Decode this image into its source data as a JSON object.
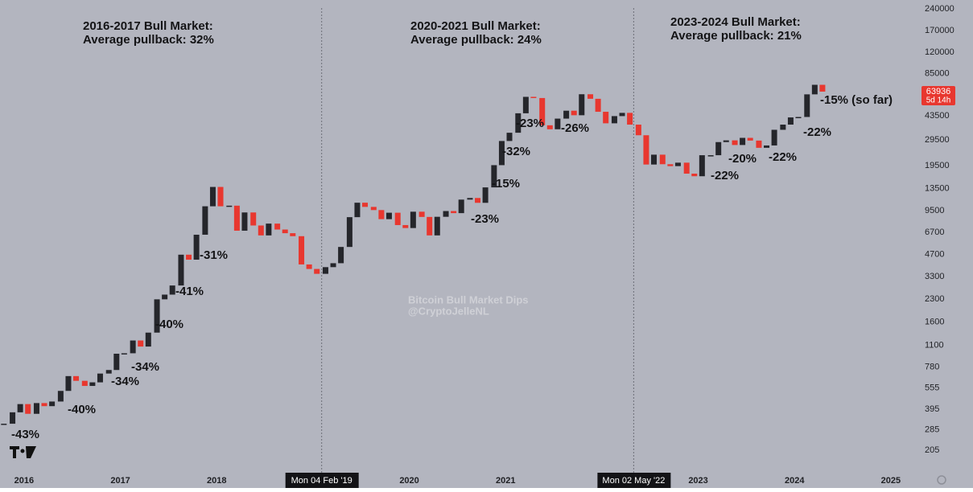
{
  "chart_data": {
    "type": "candlestick",
    "yscale": "log",
    "grid": false,
    "up_color": "#25262b",
    "down_color": "#e8372f",
    "x": [
      2015.79,
      2015.88,
      2015.96,
      2016.04,
      2016.13,
      2016.21,
      2016.29,
      2016.38,
      2016.46,
      2016.54,
      2016.63,
      2016.71,
      2016.79,
      2016.88,
      2016.96,
      2017.04,
      2017.13,
      2017.21,
      2017.29,
      2017.38,
      2017.46,
      2017.54,
      2017.63,
      2017.71,
      2017.79,
      2017.88,
      2017.96,
      2018.04,
      2018.13,
      2018.21,
      2018.29,
      2018.38,
      2018.46,
      2018.54,
      2018.63,
      2018.71,
      2018.79,
      2018.88,
      2018.96,
      2019.04,
      2019.13,
      2019.21,
      2019.29,
      2019.38,
      2019.46,
      2019.54,
      2019.63,
      2019.71,
      2019.79,
      2019.88,
      2019.96,
      2020.04,
      2020.13,
      2020.21,
      2020.29,
      2020.38,
      2020.46,
      2020.54,
      2020.63,
      2020.71,
      2020.79,
      2020.88,
      2020.96,
      2021.04,
      2021.13,
      2021.21,
      2021.29,
      2021.38,
      2021.46,
      2021.54,
      2021.63,
      2021.71,
      2021.79,
      2021.88,
      2021.96,
      2022.04,
      2022.13,
      2022.21,
      2022.29,
      2022.38,
      2022.46,
      2022.54,
      2022.63,
      2022.71,
      2022.79,
      2022.88,
      2022.96,
      2023.04,
      2023.13,
      2023.21,
      2023.29,
      2023.38,
      2023.46,
      2023.54,
      2023.63,
      2023.71,
      2023.79,
      2023.88,
      2023.96,
      2024.04,
      2024.13,
      2024.21,
      2024.29
    ],
    "close": [
      314,
      377,
      430,
      368,
      437,
      416,
      448,
      531,
      673,
      624,
      575,
      609,
      701,
      742,
      963,
      970,
      1190,
      1080,
      1350,
      2300,
      2480,
      2870,
      4700,
      4340,
      6470,
      10200,
      13900,
      10200,
      10300,
      6900,
      9240,
      7500,
      6400,
      7730,
      7030,
      6630,
      6320,
      4020,
      3740,
      3460,
      3850,
      4100,
      5320,
      8570,
      10800,
      10100,
      9600,
      8300,
      9200,
      7550,
      7200,
      9350,
      8600,
      6400,
      8620,
      9450,
      9140,
      11350,
      11650,
      10780,
      13800,
      19700,
      29000,
      33100,
      45200,
      58800,
      57700,
      37300,
      35000,
      41500,
      47100,
      43800,
      61300,
      57000,
      46300,
      38500,
      43200,
      45500,
      37700,
      31800,
      19900,
      23300,
      20000,
      19400,
      20500,
      17200,
      16500,
      23100,
      23100,
      28500,
      29300,
      27200,
      30500,
      29200,
      26000,
      27000,
      34700,
      37700,
      42300,
      42600,
      61200,
      71300,
      63936
    ],
    "countdown": "5d 14h",
    "xlim": [
      2015.75,
      2025.26
    ],
    "xticks": [
      2016,
      2017,
      2018,
      2020,
      2021,
      2023,
      2024,
      2025
    ],
    "ylim": [
      149,
      250000
    ],
    "yticks": [
      205,
      285,
      395,
      555,
      780,
      1100,
      1600,
      2300,
      3300,
      4700,
      6700,
      9500,
      13500,
      19500,
      29500,
      43500,
      85000,
      120000,
      170000,
      240000
    ],
    "crosshairs": [
      {
        "x": 2019.09,
        "label": "Mon 04 Feb '19"
      },
      {
        "x": 2022.33,
        "label": "Mon 02 May '22"
      }
    ],
    "headers": [
      [
        "2016-2017 Bull Market:",
        "Average pullback: 32%"
      ],
      [
        "2020-2021 Bull Market:",
        "Average pullback: 24%"
      ],
      [
        "2023-2024 Bull Market:",
        "Average pullback: 21%"
      ]
    ],
    "annotations": [
      "-43%",
      "-40%",
      "-34%",
      "-34%",
      "-40%",
      "-41%",
      "-31%",
      "-23%",
      "-15%",
      "-32%",
      "-23%",
      "-26%",
      "-22%",
      "-20%",
      "-22%",
      "-22%",
      "-15% (so far)"
    ],
    "watermark": [
      "Bitcoin Bull Market Dips",
      "@CryptoJelleNL"
    ]
  }
}
